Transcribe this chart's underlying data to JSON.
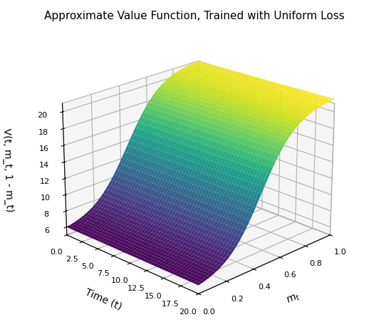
{
  "title": "Approximate Value Function, Trained with Uniform Loss",
  "xlabel": "$m_t$",
  "ylabel": "Time (t)",
  "zlabel": "V(t, m_t, 1 - m_t)",
  "m_range": [
    0.0,
    1.0
  ],
  "t_range": [
    0.0,
    20.0
  ],
  "m_steps": 50,
  "t_steps": 50,
  "colormap": "viridis",
  "title_fontsize": 11,
  "axis_label_fontsize": 10,
  "tick_fontsize": 8,
  "elev": 22,
  "azim": -135,
  "zlim": [
    5,
    21
  ],
  "zticks": [
    6,
    8,
    10,
    12,
    14,
    16,
    18,
    20
  ],
  "xticks": [
    0.0,
    0.2,
    0.4,
    0.6,
    0.8,
    1.0
  ],
  "yticks": [
    0.0,
    2.5,
    5.0,
    7.5,
    10.0,
    12.5,
    15.0,
    17.5,
    20.0
  ],
  "pane_color": [
    0.93,
    0.93,
    0.93,
    1.0
  ],
  "V_base": 6.0,
  "V_scale_m": 15.0,
  "V_scale_t": 0.5,
  "m_power": 2.5,
  "t_power": 0.5
}
